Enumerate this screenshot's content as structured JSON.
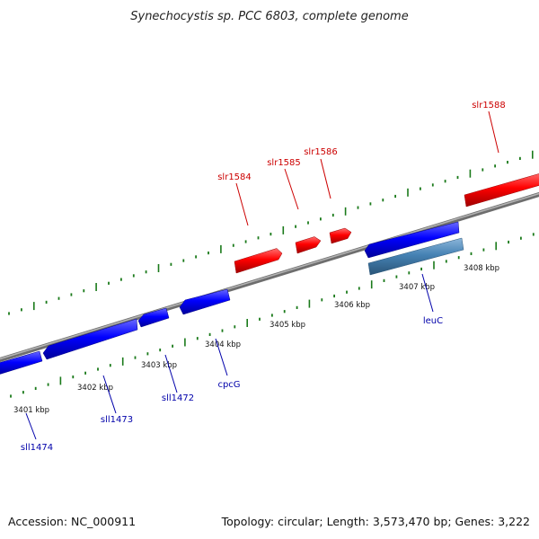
{
  "title": "Synechocystis sp. PCC 6803, complete genome",
  "footer": {
    "accession": "Accession: NC_000911",
    "summary": "Topology: circular; Length: 3,573,470 bp; Genes: 3,222"
  },
  "scale": {
    "ticks": [
      {
        "label": "3401 kbp"
      },
      {
        "label": "3402 kbp"
      },
      {
        "label": "3403 kbp"
      },
      {
        "label": "3404 kbp"
      },
      {
        "label": "3405 kbp"
      },
      {
        "label": "3406 kbp"
      },
      {
        "label": "3407 kbp"
      },
      {
        "label": "3408 kbp"
      }
    ]
  },
  "genes": {
    "forward": [
      {
        "name": "slr1584"
      },
      {
        "name": "slr1585"
      },
      {
        "name": "slr1586"
      },
      {
        "name": "slr1588"
      }
    ],
    "reverse": [
      {
        "name": "sll1474"
      },
      {
        "name": "sll1473"
      },
      {
        "name": "sll1472"
      },
      {
        "name": "cpcG"
      },
      {
        "name": "leuC"
      }
    ]
  },
  "colors": {
    "forward_gene": "#ff0000",
    "reverse_gene": "#0000ff",
    "highlight_gene": "#4682b4",
    "backbone": "#808080",
    "tick": "#1a7a1a",
    "forward_label": "#cc0000",
    "reverse_label": "#0000aa"
  }
}
